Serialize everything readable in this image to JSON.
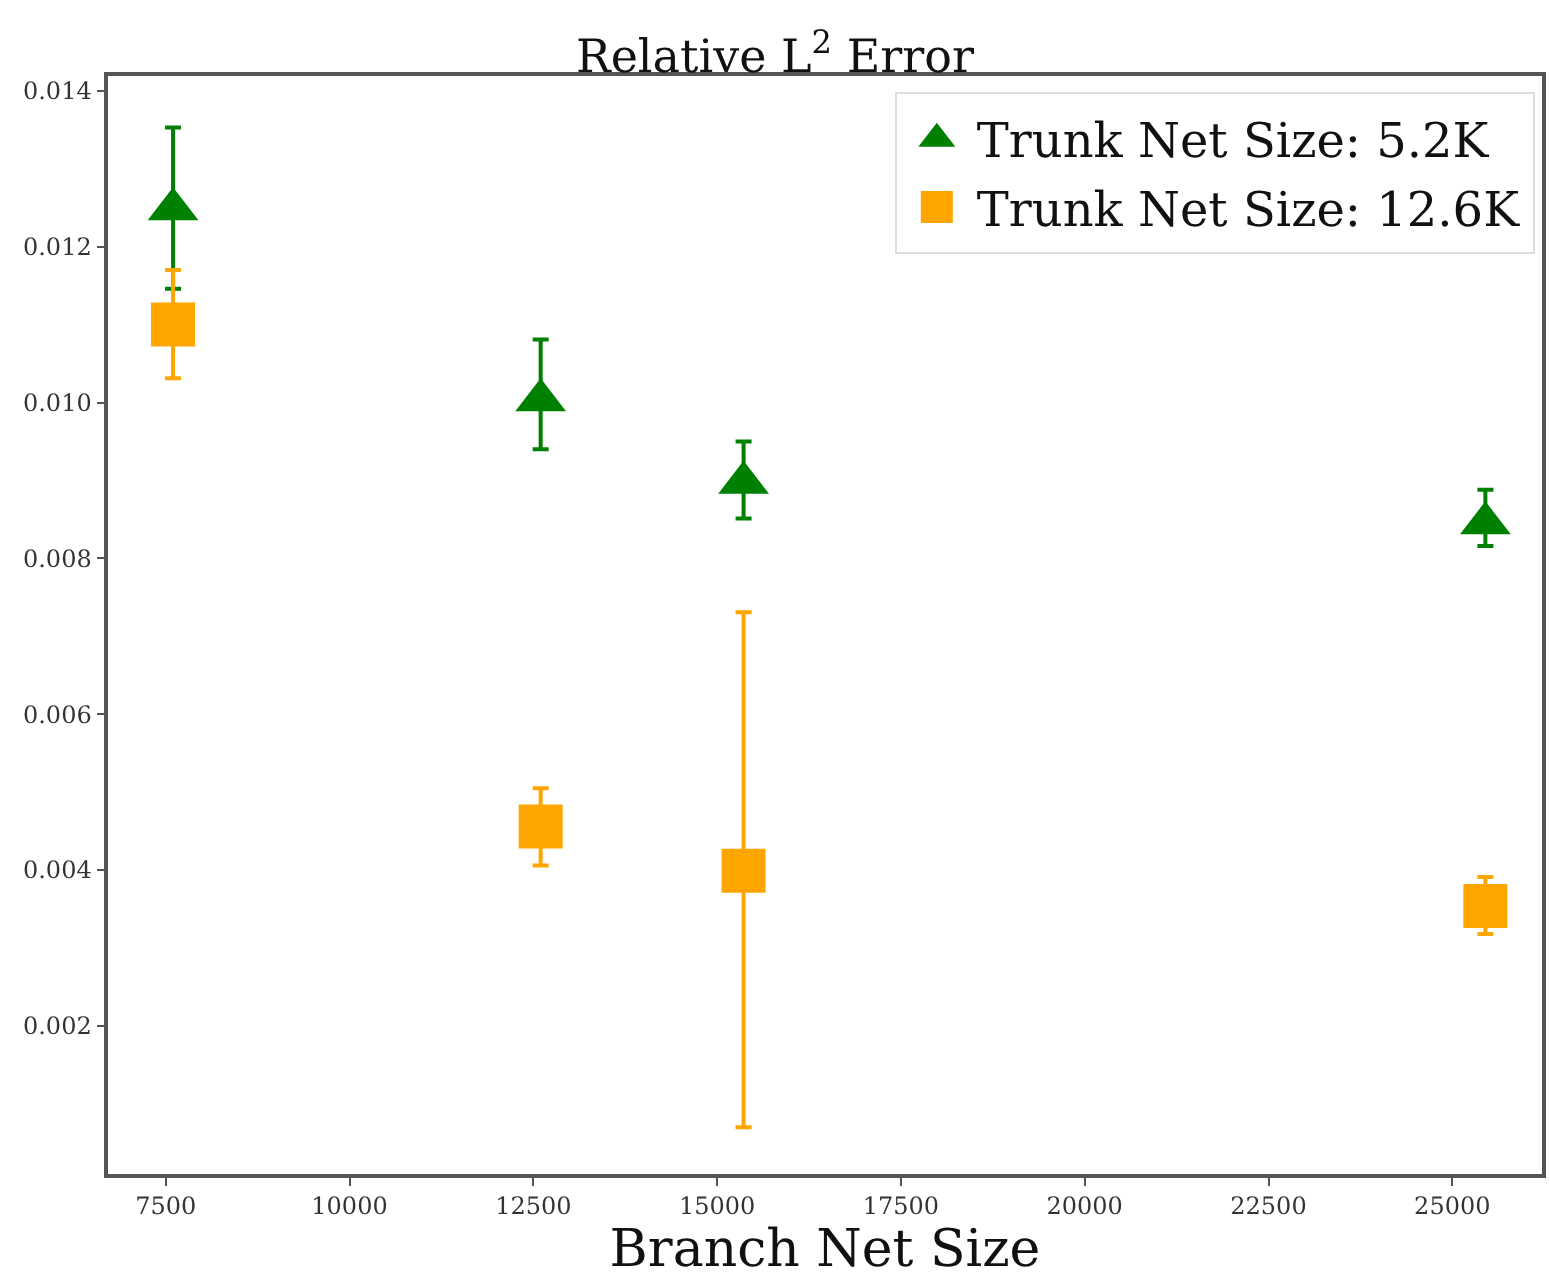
{
  "chart_data": {
    "type": "scatter",
    "title": "Relative L$^{2}$ Error",
    "xlabel": "Branch Net Size",
    "x": [
      7600,
      12600,
      15360,
      25450
    ],
    "series": [
      {
        "name": "Trunk Net Size: 5.2K",
        "color": "#008000",
        "marker": "triangle",
        "values": [
          0.01248,
          0.01003,
          0.00897,
          0.00845
        ],
        "errors": [
          [
            0.01146,
            0.01353
          ],
          [
            0.0094,
            0.01081
          ],
          [
            0.00851,
            0.0095
          ],
          [
            0.00816,
            0.00888
          ]
        ]
      },
      {
        "name": "Trunk Net Size: 12.6K",
        "color": "#ffa500",
        "marker": "square",
        "values": [
          0.011,
          0.00456,
          0.00399,
          0.00354
        ],
        "errors": [
          [
            0.01031,
            0.0117
          ],
          [
            0.00406,
            0.00505
          ],
          [
            0.0007,
            0.00731
          ],
          [
            0.00318,
            0.00391
          ]
        ]
      }
    ],
    "xlim": [
      6715,
      26220
    ],
    "xticks": [
      7500,
      10000,
      12500,
      15000,
      17500,
      20000,
      22500,
      25000
    ],
    "ylim": [
      0.0001,
      0.01419
    ],
    "yticks": [
      {
        "value": 0.002,
        "label": "0.002"
      },
      {
        "value": 0.004,
        "label": "0.004"
      },
      {
        "value": 0.006,
        "label": "0.006"
      },
      {
        "value": 0.008,
        "label": "0.008"
      },
      {
        "value": 0.01,
        "label": "0.010"
      },
      {
        "value": 0.012,
        "label": "0.012"
      },
      {
        "value": 0.014,
        "label": "0.014"
      }
    ],
    "legend": "top right"
  }
}
